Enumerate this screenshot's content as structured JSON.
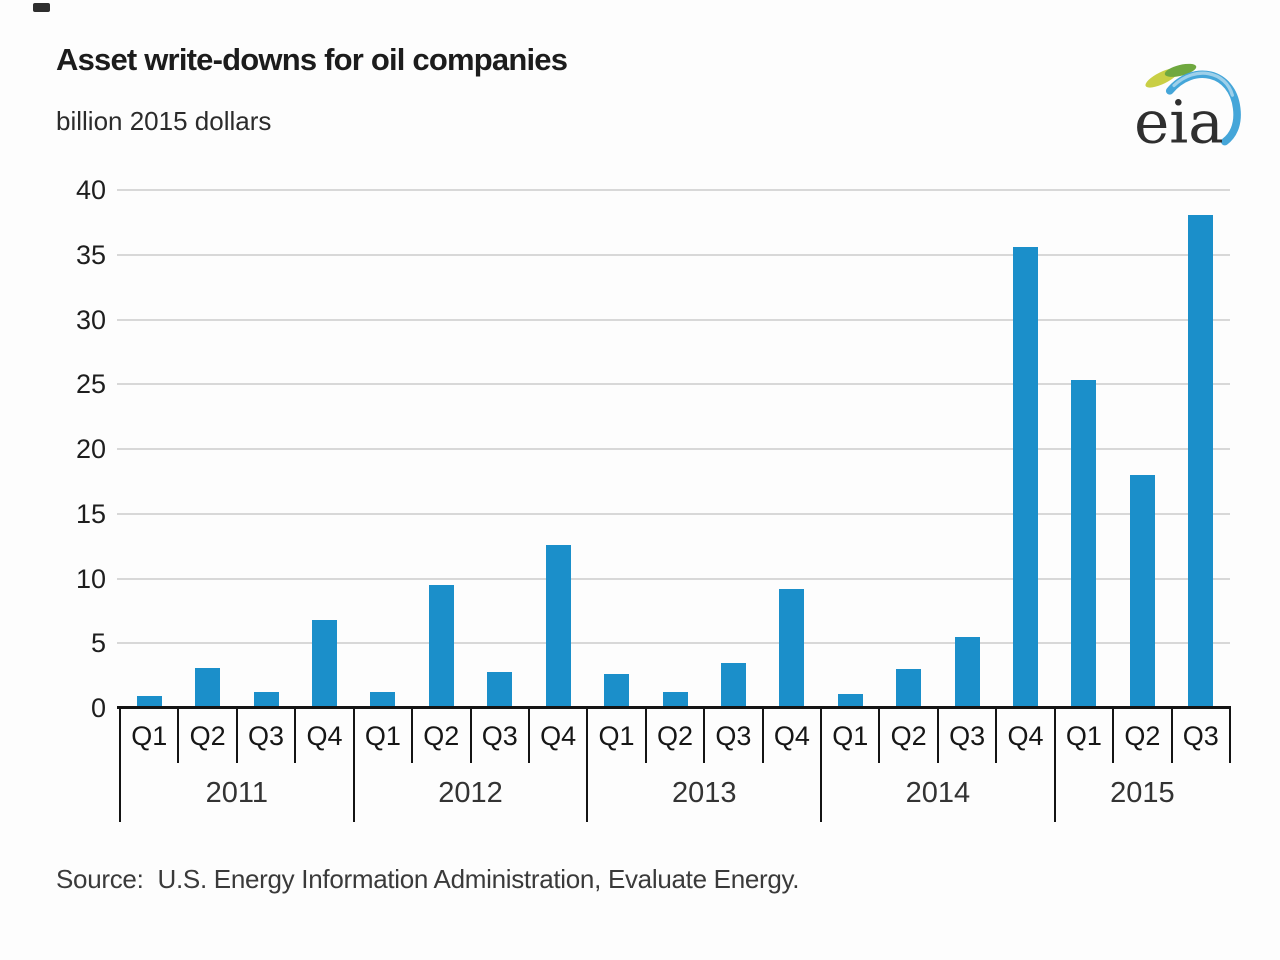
{
  "header": {
    "title": "Asset write-downs for oil companies",
    "subtitle": "billion 2015 dollars",
    "logo_text": "eia"
  },
  "source": {
    "label": "Source:",
    "text": "U.S. Energy Information Administration, Evaluate Energy."
  },
  "colors": {
    "bar": "#1b8fca",
    "gridline": "#d8d8d8",
    "axis": "#141414",
    "logo_blue": "#45a6d9",
    "logo_green": "#6fa83f",
    "logo_yellow_green": "#c9cf45"
  },
  "chart_data": {
    "type": "bar",
    "title": "Asset write-downs for oil companies",
    "unit_label": "billion 2015 dollars",
    "xlabel": "",
    "ylabel": "billion 2015 dollars",
    "ylim": [
      0,
      40
    ],
    "yticks": [
      0,
      5,
      10,
      15,
      20,
      25,
      30,
      35,
      40
    ],
    "grid": "horizontal",
    "legend": "none",
    "groups": [
      {
        "year": "2011",
        "quarters": [
          "Q1",
          "Q2",
          "Q3",
          "Q4"
        ],
        "values": [
          0.9,
          3.1,
          1.2,
          6.8
        ]
      },
      {
        "year": "2012",
        "quarters": [
          "Q1",
          "Q2",
          "Q3",
          "Q4"
        ],
        "values": [
          1.2,
          9.5,
          2.8,
          12.6
        ]
      },
      {
        "year": "2013",
        "quarters": [
          "Q1",
          "Q2",
          "Q3",
          "Q4"
        ],
        "values": [
          2.6,
          1.2,
          3.5,
          9.2
        ]
      },
      {
        "year": "2014",
        "quarters": [
          "Q1",
          "Q2",
          "Q3",
          "Q4"
        ],
        "values": [
          1.1,
          3.0,
          5.5,
          35.6
        ]
      },
      {
        "year": "2015",
        "quarters": [
          "Q1",
          "Q2",
          "Q3"
        ],
        "values": [
          25.3,
          18.0,
          38.1
        ]
      }
    ]
  }
}
